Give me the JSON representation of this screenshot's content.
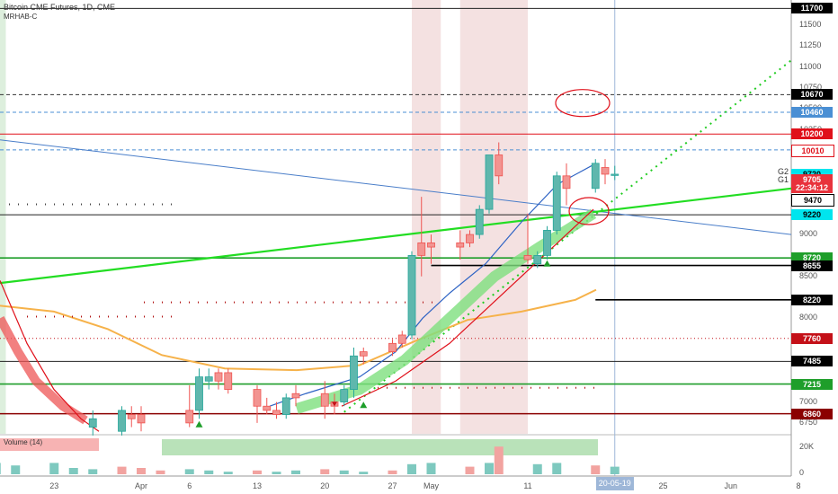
{
  "header": {
    "title": "Bitcoin CME Futures, 1D, CME",
    "indicator": "MRHAB-C"
  },
  "volume_label": "Volume (14)",
  "price_axis_ticks": [
    "11500",
    "11250",
    "11000",
    "10750",
    "10500",
    "10250",
    "9000",
    "8500",
    "8000",
    "7500",
    "7000",
    "6750"
  ],
  "volume_axis_ticks": [
    "20K",
    "0"
  ],
  "x_axis_ticks": [
    "23",
    "Apr",
    "6",
    "13",
    "20",
    "27",
    "May",
    "11",
    "25",
    "Jun",
    "8"
  ],
  "x_axis_highlight": "20-05-19",
  "g_labels": [
    "G2",
    "G1"
  ],
  "price_tags": [
    {
      "text": "11700",
      "bg": "#000000",
      "fg": "#ffffff",
      "price": 11700
    },
    {
      "text": "10670",
      "bg": "#000000",
      "fg": "#ffffff",
      "price": 10670
    },
    {
      "text": "10460",
      "bg": "#4a8fd4",
      "fg": "#ffffff",
      "price": 10460
    },
    {
      "text": "10200",
      "bg": "#e0101a",
      "fg": "#ffffff",
      "price": 10200
    },
    {
      "text": "10010",
      "bg": "#ffffff",
      "fg": "#e0101a",
      "price": 10010
    },
    {
      "text": "9720",
      "bg": "#00e5ee",
      "fg": "#000000",
      "price": 9720
    },
    {
      "text": "9705",
      "bg": "#e8323c",
      "fg": "#ffffff",
      "price": 9650
    },
    {
      "text": "22:34:12",
      "bg": "#e8323c",
      "fg": "#ffffff",
      "price": 9555
    },
    {
      "text": "9470",
      "bg": "#ffffff",
      "fg": "#000000",
      "price": 9420
    },
    {
      "text": "9220",
      "bg": "#00e5ee",
      "fg": "#000000",
      "price": 9235
    },
    {
      "text": "8720",
      "bg": "#1e9e2a",
      "fg": "#ffffff",
      "price": 8720
    },
    {
      "text": "8655",
      "bg": "#000000",
      "fg": "#ffffff",
      "price": 8630
    },
    {
      "text": "8220",
      "bg": "#000000",
      "fg": "#ffffff",
      "price": 8220
    },
    {
      "text": "7760",
      "bg": "#c41018",
      "fg": "#ffffff",
      "price": 7760
    },
    {
      "text": "7485",
      "bg": "#000000",
      "fg": "#ffffff",
      "price": 7485
    },
    {
      "text": "7215",
      "bg": "#1e9e2a",
      "fg": "#ffffff",
      "price": 7215
    },
    {
      "text": "6860",
      "bg": "#8b0000",
      "fg": "#ffffff",
      "price": 6860
    }
  ],
  "horizontal_levels": [
    {
      "price": 11700,
      "color": "#222222",
      "style": "solid"
    },
    {
      "price": 10670,
      "color": "#333333",
      "style": "dash"
    },
    {
      "price": 10460,
      "color": "#4a8fd4",
      "style": "dash"
    },
    {
      "price": 10200,
      "color": "#e0101a",
      "style": "solid"
    },
    {
      "price": 10010,
      "color": "#4a8fd4",
      "style": "dash"
    },
    {
      "price": 9235,
      "color": "#222222",
      "style": "solid"
    },
    {
      "price": 8720,
      "color": "#1e9e2a",
      "style": "solid"
    },
    {
      "price": 8630,
      "color": "#000000",
      "style": "solid",
      "from": "2020-05-01"
    },
    {
      "price": 8220,
      "color": "#000000",
      "style": "solid",
      "from": "2020-05-18"
    },
    {
      "price": 7760,
      "color": "#c41018",
      "style": "dot"
    },
    {
      "price": 7485,
      "color": "#222222",
      "style": "solid"
    },
    {
      "price": 7215,
      "color": "#1e9e2a",
      "style": "solid"
    },
    {
      "price": 6860,
      "color": "#8b0000",
      "style": "solid"
    }
  ],
  "chart_data": {
    "type": "candlestick",
    "title": "Bitcoin CME Futures, 1D, CME",
    "y_axis_range": [
      6600,
      11800
    ],
    "volume_axis_range": [
      0,
      30000
    ],
    "time_range": [
      "2020-03-17",
      "2020-06-11"
    ],
    "candles": [
      {
        "date": "2020-03-27",
        "o": 6700,
        "h": 6900,
        "l": 6600,
        "c": 6800,
        "up": true
      },
      {
        "date": "2020-03-30",
        "o": 6650,
        "h": 6950,
        "l": 6600,
        "c": 6900,
        "up": true
      },
      {
        "date": "2020-03-31",
        "o": 6800,
        "h": 6950,
        "l": 6700,
        "c": 6850,
        "up": false
      },
      {
        "date": "2020-04-01",
        "o": 6750,
        "h": 6950,
        "l": 6650,
        "c": 6850,
        "up": false
      },
      {
        "date": "2020-04-06",
        "o": 6750,
        "h": 7200,
        "l": 6700,
        "c": 6900,
        "up": false
      },
      {
        "date": "2020-04-07",
        "o": 6900,
        "h": 7400,
        "l": 6800,
        "c": 7300,
        "up": true
      },
      {
        "date": "2020-04-08",
        "o": 7300,
        "h": 7400,
        "l": 7150,
        "c": 7250,
        "up": true
      },
      {
        "date": "2020-04-09",
        "o": 7250,
        "h": 7400,
        "l": 7150,
        "c": 7350,
        "up": false
      },
      {
        "date": "2020-04-10",
        "o": 7350,
        "h": 7400,
        "l": 7100,
        "c": 7150,
        "up": false
      },
      {
        "date": "2020-04-13",
        "o": 7150,
        "h": 7200,
        "l": 6750,
        "c": 6950,
        "up": false
      },
      {
        "date": "2020-04-14",
        "o": 6950,
        "h": 7050,
        "l": 6850,
        "c": 6900,
        "up": false
      },
      {
        "date": "2020-04-15",
        "o": 6900,
        "h": 7000,
        "l": 6800,
        "c": 6850,
        "up": false
      },
      {
        "date": "2020-04-16",
        "o": 6850,
        "h": 7100,
        "l": 6800,
        "c": 7050,
        "up": true
      },
      {
        "date": "2020-04-17",
        "o": 7050,
        "h": 7200,
        "l": 6950,
        "c": 7100,
        "up": false
      },
      {
        "date": "2020-04-20",
        "o": 7100,
        "h": 7250,
        "l": 6800,
        "c": 6950,
        "up": false
      },
      {
        "date": "2020-04-21",
        "o": 6950,
        "h": 7100,
        "l": 6850,
        "c": 7000,
        "up": false
      },
      {
        "date": "2020-04-22",
        "o": 7000,
        "h": 7200,
        "l": 6950,
        "c": 7150,
        "up": true
      },
      {
        "date": "2020-04-23",
        "o": 7150,
        "h": 7650,
        "l": 7050,
        "c": 7550,
        "up": true
      },
      {
        "date": "2020-04-24",
        "o": 7550,
        "h": 7650,
        "l": 7450,
        "c": 7600,
        "up": false
      },
      {
        "date": "2020-04-27",
        "o": 7600,
        "h": 7750,
        "l": 7550,
        "c": 7700,
        "up": false
      },
      {
        "date": "2020-04-28",
        "o": 7700,
        "h": 7850,
        "l": 7650,
        "c": 7800,
        "up": false
      },
      {
        "date": "2020-04-29",
        "o": 7800,
        "h": 8800,
        "l": 7750,
        "c": 8750,
        "up": true
      },
      {
        "date": "2020-04-30",
        "o": 8750,
        "h": 9450,
        "l": 8500,
        "c": 8900,
        "up": false
      },
      {
        "date": "2020-05-01",
        "o": 8900,
        "h": 9000,
        "l": 8650,
        "c": 8850,
        "up": false
      },
      {
        "date": "2020-05-04",
        "o": 8850,
        "h": 9050,
        "l": 8700,
        "c": 8900,
        "up": false
      },
      {
        "date": "2020-05-05",
        "o": 8900,
        "h": 9050,
        "l": 8850,
        "c": 9000,
        "up": false
      },
      {
        "date": "2020-05-06",
        "o": 9000,
        "h": 9350,
        "l": 8950,
        "c": 9300,
        "up": true
      },
      {
        "date": "2020-05-07",
        "o": 9300,
        "h": 9950,
        "l": 9250,
        "c": 9950,
        "up": true
      },
      {
        "date": "2020-05-08",
        "o": 9950,
        "h": 10100,
        "l": 9600,
        "c": 9700,
        "up": false
      },
      {
        "date": "2020-05-11",
        "o": 8750,
        "h": 9250,
        "l": 8650,
        "c": 8700,
        "up": false
      },
      {
        "date": "2020-05-12",
        "o": 8650,
        "h": 8800,
        "l": 8600,
        "c": 8750,
        "up": true
      },
      {
        "date": "2020-05-13",
        "o": 8750,
        "h": 9100,
        "l": 8700,
        "c": 9050,
        "up": true
      },
      {
        "date": "2020-05-14",
        "o": 9050,
        "h": 9750,
        "l": 9000,
        "c": 9700,
        "up": true
      },
      {
        "date": "2020-05-15",
        "o": 9700,
        "h": 9850,
        "l": 9350,
        "c": 9550,
        "up": false
      },
      {
        "date": "2020-05-18",
        "o": 9550,
        "h": 9900,
        "l": 9500,
        "c": 9850,
        "up": true
      },
      {
        "date": "2020-05-19",
        "o": 9800,
        "h": 9900,
        "l": 9600,
        "c": 9720,
        "up": false
      },
      {
        "date": "2020-05-20",
        "o": 9720,
        "h": 9820,
        "l": 9650,
        "c": 9705,
        "up": true
      }
    ],
    "volume": [
      {
        "date": "2020-03-17",
        "v": 9000,
        "up": true
      },
      {
        "date": "2020-03-19",
        "v": 7000,
        "up": true
      },
      {
        "date": "2020-03-23",
        "v": 9000,
        "up": true
      },
      {
        "date": "2020-03-25",
        "v": 5000,
        "up": true
      },
      {
        "date": "2020-03-27",
        "v": 4000,
        "up": true
      },
      {
        "date": "2020-03-30",
        "v": 6000,
        "up": false
      },
      {
        "date": "2020-04-01",
        "v": 5000,
        "up": false
      },
      {
        "date": "2020-04-03",
        "v": 3000,
        "up": false
      },
      {
        "date": "2020-04-06",
        "v": 4000,
        "up": true
      },
      {
        "date": "2020-04-08",
        "v": 3000,
        "up": true
      },
      {
        "date": "2020-04-10",
        "v": 2000,
        "up": true
      },
      {
        "date": "2020-04-13",
        "v": 3000,
        "up": false
      },
      {
        "date": "2020-04-15",
        "v": 2000,
        "up": true
      },
      {
        "date": "2020-04-17",
        "v": 3000,
        "up": true
      },
      {
        "date": "2020-04-20",
        "v": 4000,
        "up": false
      },
      {
        "date": "2020-04-22",
        "v": 3000,
        "up": true
      },
      {
        "date": "2020-04-24",
        "v": 2000,
        "up": true
      },
      {
        "date": "2020-04-27",
        "v": 3000,
        "up": false
      },
      {
        "date": "2020-04-29",
        "v": 8000,
        "up": true
      },
      {
        "date": "2020-05-01",
        "v": 9000,
        "up": true
      },
      {
        "date": "2020-05-05",
        "v": 6000,
        "up": false
      },
      {
        "date": "2020-05-07",
        "v": 9000,
        "up": true
      },
      {
        "date": "2020-05-08",
        "v": 22000,
        "up": false
      },
      {
        "date": "2020-05-12",
        "v": 8000,
        "up": true
      },
      {
        "date": "2020-05-14",
        "v": 9000,
        "up": true
      },
      {
        "date": "2020-05-18",
        "v": 7000,
        "up": false
      },
      {
        "date": "2020-05-20",
        "v": 6000,
        "up": true
      }
    ],
    "markers": [
      {
        "date": "2020-04-07",
        "price": 6730,
        "kind": "triangle-up",
        "color": "#1e9e2a"
      },
      {
        "date": "2020-04-24",
        "price": 6960,
        "kind": "triangle-up",
        "color": "#1e9e2a"
      },
      {
        "date": "2020-05-13",
        "price": 8650,
        "kind": "triangle-up",
        "color": "#1e9e2a"
      },
      {
        "date": "2020-04-21",
        "price": 6980,
        "kind": "triangle-down",
        "color": "#c41018"
      }
    ],
    "shaded_ranges": [
      {
        "from": "2020-03-16",
        "to": "2020-03-18",
        "color": "#d7ecd7"
      },
      {
        "from": "2020-04-29",
        "to": "2020-05-02",
        "color": "#f2dcdc"
      },
      {
        "from": "2020-05-04",
        "to": "2020-05-11",
        "color": "#f2dcdc"
      }
    ]
  }
}
